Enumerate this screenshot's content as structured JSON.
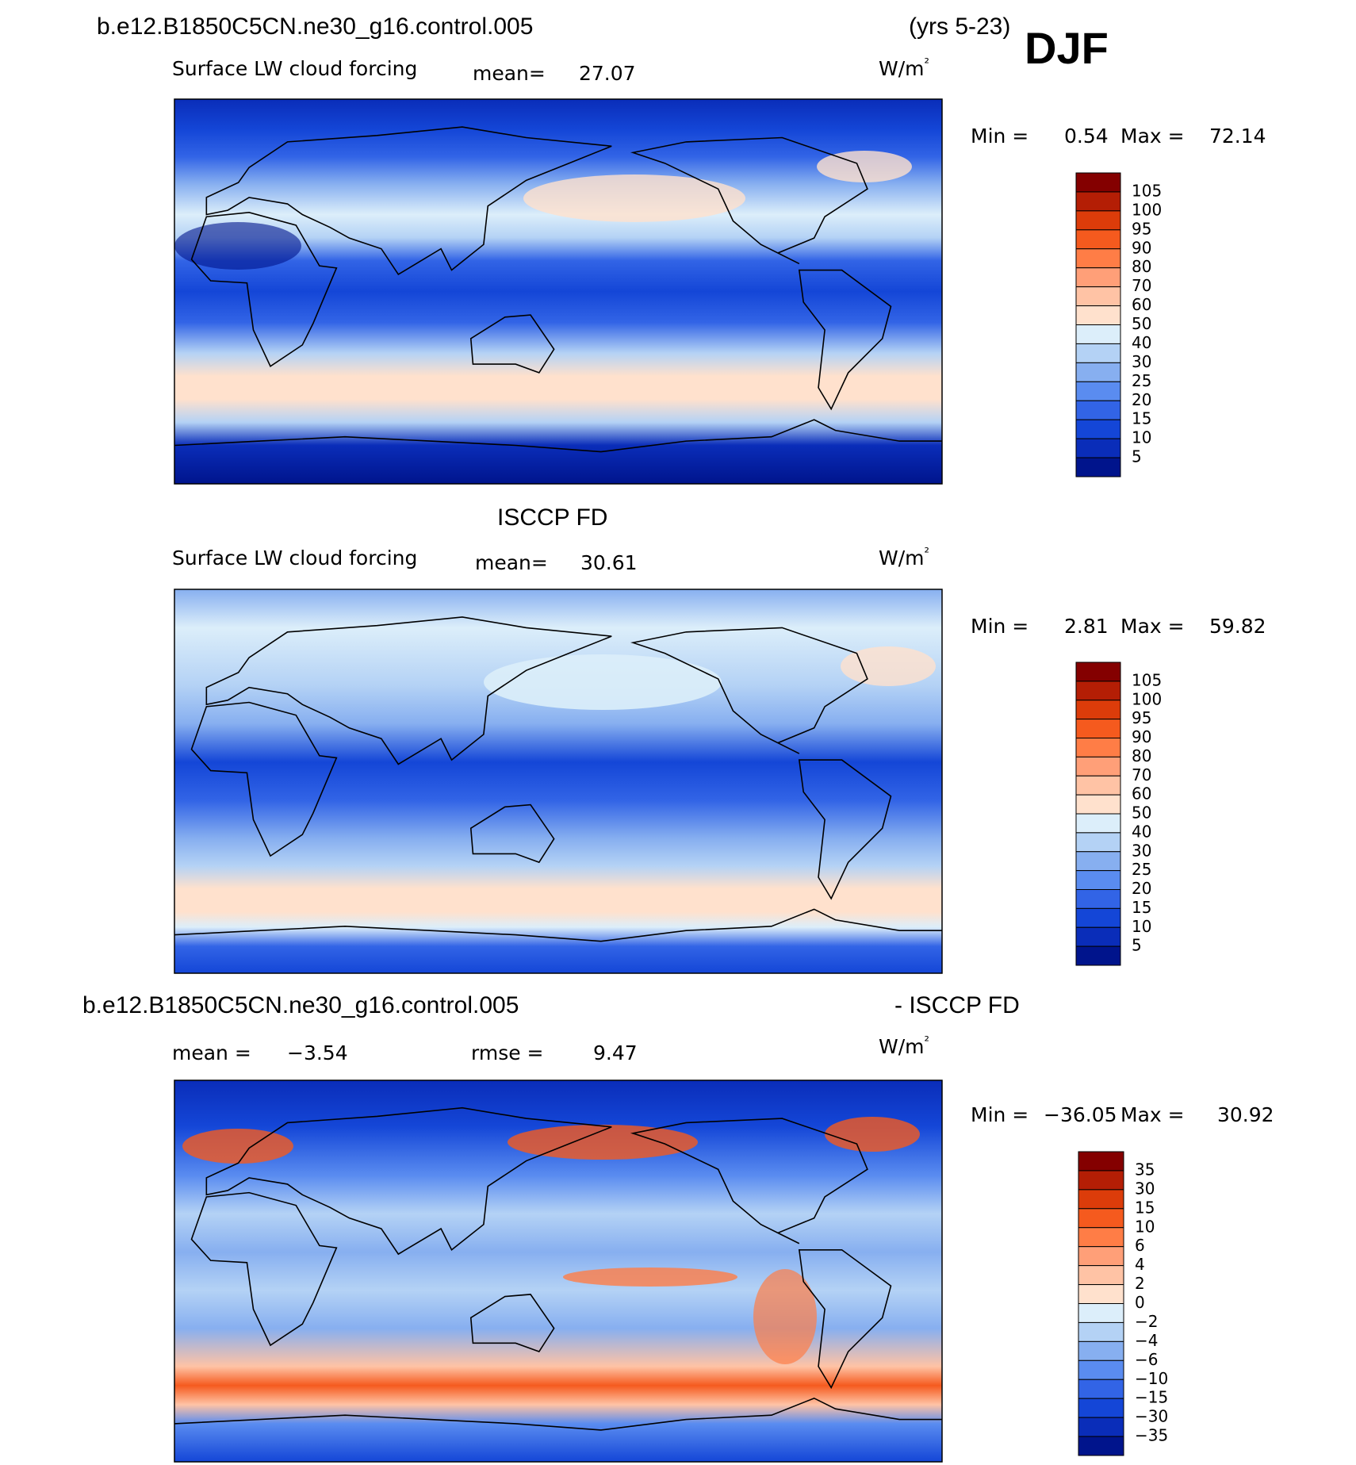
{
  "header": {
    "title": "b.e12.B1850C5CN.ne30_g16.control.005",
    "period": "(yrs 5-23)",
    "season": "DJF"
  },
  "panels": [
    {
      "variable": "Surface LW cloud forcing",
      "mean_label": "mean=",
      "mean": "27.07",
      "units": "W/m²",
      "min_label": "Min =",
      "min": "0.54",
      "max_label": "Max =",
      "max": "72.14",
      "levels": [
        "105",
        "100",
        "95",
        "90",
        "80",
        "70",
        "60",
        "50",
        "40",
        "30",
        "25",
        "20",
        "15",
        "10",
        "5"
      ],
      "colors": [
        "#840000",
        "#b41e05",
        "#dc3c0a",
        "#f55a1e",
        "#ff7d46",
        "#ff9f78",
        "#ffc3a5",
        "#ffe1cd",
        "#dceefa",
        "#b4d2f5",
        "#87aff0",
        "#5a8cf0",
        "#3264e6",
        "#1446d7",
        "#0a2db9",
        "#00148c"
      ]
    },
    {
      "heading": "ISCCP FD",
      "variable": "Surface LW cloud forcing",
      "mean_label": "mean=",
      "mean": "30.61",
      "units": "W/m²",
      "min_label": "Min =",
      "min": "2.81",
      "max_label": "Max =",
      "max": "59.82",
      "levels": [
        "105",
        "100",
        "95",
        "90",
        "80",
        "70",
        "60",
        "50",
        "40",
        "30",
        "25",
        "20",
        "15",
        "10",
        "5"
      ],
      "colors": [
        "#840000",
        "#b41e05",
        "#dc3c0a",
        "#f55a1e",
        "#ff7d46",
        "#ff9f78",
        "#ffc3a5",
        "#ffe1cd",
        "#dceefa",
        "#b4d2f5",
        "#87aff0",
        "#5a8cf0",
        "#3264e6",
        "#1446d7",
        "#0a2db9",
        "#00148c"
      ]
    },
    {
      "heading_left": "b.e12.B1850C5CN.ne30_g16.control.005",
      "heading_right": "- ISCCP FD",
      "mean_label": "mean =",
      "mean": "−3.54",
      "rmse_label": "rmse =",
      "rmse": "9.47",
      "units": "W/m²",
      "min_label": "Min =",
      "min": "−36.05",
      "max_label": "Max =",
      "max": "30.92",
      "levels": [
        "35",
        "30",
        "15",
        "10",
        "6",
        "4",
        "2",
        "0",
        "−2",
        "−4",
        "−6",
        "−10",
        "−15",
        "−30",
        "−35"
      ],
      "colors": [
        "#840000",
        "#b41e05",
        "#dc3c0a",
        "#f55a1e",
        "#ff7d46",
        "#ff9f78",
        "#ffc3a5",
        "#ffe1cd",
        "#dceefa",
        "#b4d2f5",
        "#87aff0",
        "#5a8cf0",
        "#3264e6",
        "#1446d7",
        "#0a2db9",
        "#00148c"
      ]
    }
  ]
}
